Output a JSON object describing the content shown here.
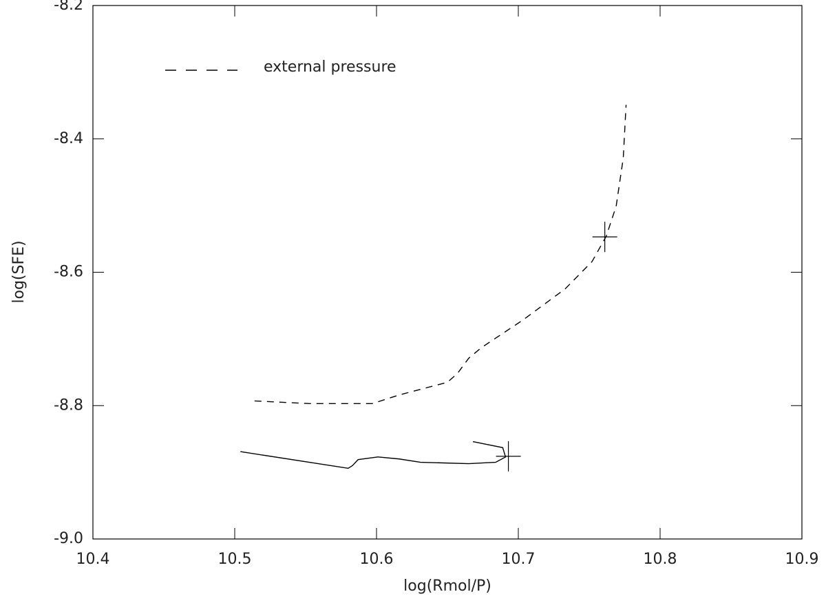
{
  "chart_data": {
    "type": "line",
    "x_label": "log(Rmol/P)",
    "y_label": "log(SFE)",
    "xlim": [
      10.4,
      10.9
    ],
    "xticks": [
      10.4,
      10.5,
      10.6,
      10.7,
      10.8,
      10.9
    ],
    "ylim": [
      -9.0,
      -8.2
    ],
    "yticks": [
      {
        "value": -9,
        "label": "-9.0"
      },
      -8.8,
      -8.6,
      -8.4,
      -8.2
    ],
    "legend": "upper left",
    "series": [
      {
        "name": "external pressure",
        "color": "#000000",
        "dash": true,
        "x": [
          10.514,
          10.553,
          10.597,
          10.616,
          10.65,
          10.657,
          10.665,
          10.674,
          10.703,
          10.733,
          10.752,
          10.762,
          10.769,
          10.774,
          10.776
        ],
        "values": [
          -8.793,
          -8.797,
          -8.797,
          -8.784,
          -8.765,
          -8.752,
          -8.729,
          -8.713,
          -8.672,
          -8.625,
          -8.584,
          -8.546,
          -8.501,
          -8.429,
          -8.349
        ],
        "cross": [
          10.761,
          -8.547
        ]
      },
      {
        "color": "#000000",
        "dash": false,
        "x": [
          10.504,
          10.58,
          10.583,
          10.587,
          10.601,
          10.616,
          10.631,
          10.665,
          10.684,
          10.691,
          10.689,
          10.668
        ],
        "values": [
          -8.869,
          -8.894,
          -8.89,
          -8.881,
          -8.877,
          -8.88,
          -8.885,
          -8.887,
          -8.885,
          -8.877,
          -8.863,
          -8.854
        ],
        "cross": [
          10.693,
          -8.876
        ]
      }
    ]
  }
}
